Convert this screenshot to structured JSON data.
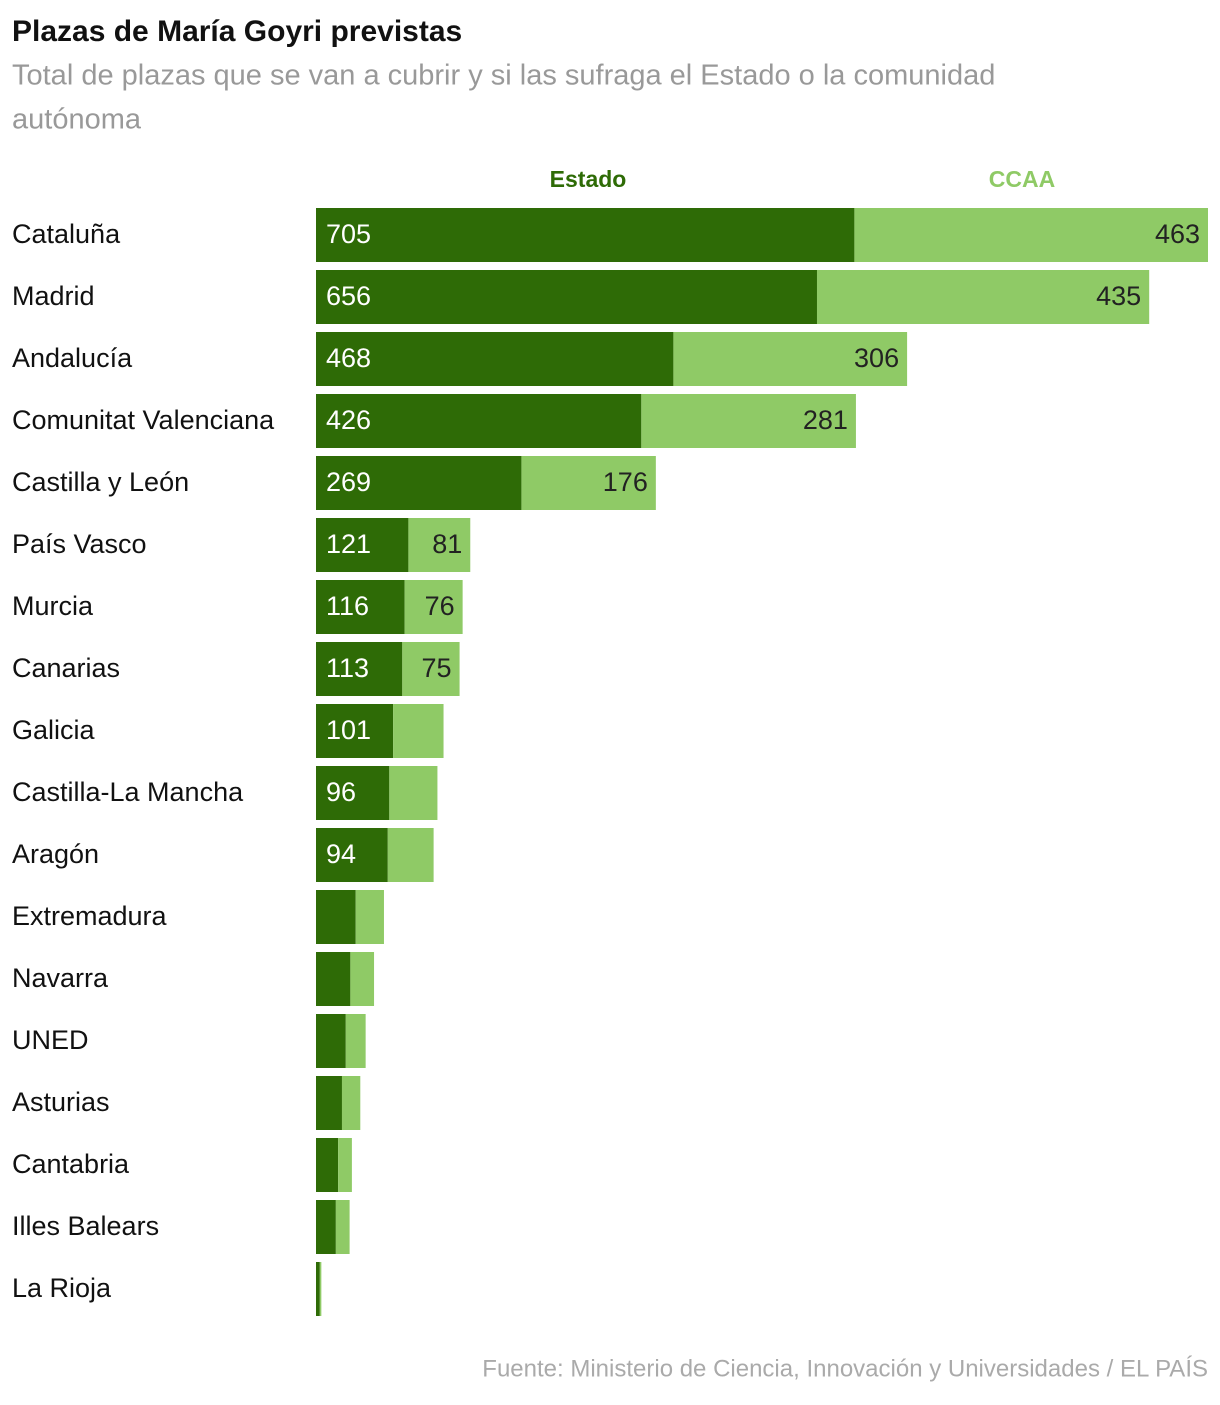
{
  "chart_data": {
    "type": "stacked-bar",
    "orientation": "horizontal",
    "title": "Plazas de María Goyri previstas",
    "subtitle": [
      "Total de plazas que se van a cubrir y si las sufraga el Estado o la comunidad",
      "autónoma"
    ],
    "source": "Fuente: Ministerio de Ciencia, Innovación y Universidades / EL PAÍS",
    "categories": [
      "Cataluña",
      "Madrid",
      "Andalucía",
      "Comunitat Valenciana",
      "Castilla y León",
      "País Vasco",
      "Murcia",
      "Canarias",
      "Galicia",
      "Castilla-La Mancha",
      "Aragón",
      "Extremadura",
      "Navarra",
      "UNED",
      "Asturias",
      "Cantabria",
      "Illes Balears",
      "La Rioja"
    ],
    "series": [
      {
        "name": "Estado",
        "color": "#2e6b06",
        "values": [
          705,
          656,
          468,
          426,
          269,
          121,
          116,
          113,
          101,
          96,
          94,
          52,
          45,
          39,
          34,
          29,
          26,
          5
        ]
      },
      {
        "name": "CCAA",
        "color": "#8fca66",
        "values": [
          463,
          435,
          306,
          281,
          176,
          81,
          76,
          75,
          66,
          63,
          60,
          37,
          31,
          26,
          24,
          18,
          18,
          2
        ]
      }
    ]
  }
}
